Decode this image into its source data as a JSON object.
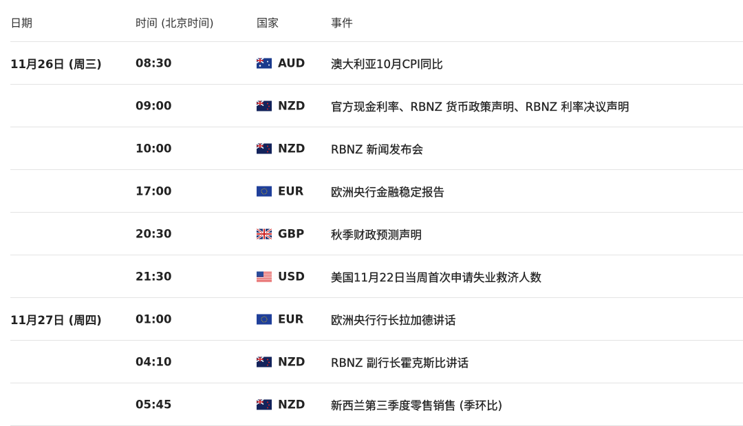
{
  "headers": {
    "date": "日期",
    "time": "时间 (北京时间)",
    "country": "国家",
    "event": "事件"
  },
  "rows": [
    {
      "date": "11月26日 (周三)",
      "time": "08:30",
      "flag": "australia-flag",
      "currency": "AUD",
      "event": "澳大利亚10月CPI同比"
    },
    {
      "date": "",
      "time": "09:00",
      "flag": "new-zealand-flag",
      "currency": "NZD",
      "event": "官方现金利率、RBNZ 货币政策声明、RBNZ 利率决议声明"
    },
    {
      "date": "",
      "time": "10:00",
      "flag": "new-zealand-flag",
      "currency": "NZD",
      "event": "RBNZ 新闻发布会"
    },
    {
      "date": "",
      "time": "17:00",
      "flag": "eu-flag",
      "currency": "EUR",
      "event": "欧洲央行金融稳定报告"
    },
    {
      "date": "",
      "time": "20:30",
      "flag": "uk-flag",
      "currency": "GBP",
      "event": "秋季财政预测声明"
    },
    {
      "date": "",
      "time": "21:30",
      "flag": "us-flag",
      "currency": "USD",
      "event": "美国11月22日当周首次申请失业救济人数"
    },
    {
      "date": "11月27日 (周四)",
      "time": "01:00",
      "flag": "eu-flag",
      "currency": "EUR",
      "event": "欧洲央行行长拉加德讲话"
    },
    {
      "date": "",
      "time": "04:10",
      "flag": "new-zealand-flag",
      "currency": "NZD",
      "event": "RBNZ 副行长霍克斯比讲话"
    },
    {
      "date": "",
      "time": "05:45",
      "flag": "new-zealand-flag",
      "currency": "NZD",
      "event": "新西兰第三季度零售销售 (季环比)"
    }
  ]
}
